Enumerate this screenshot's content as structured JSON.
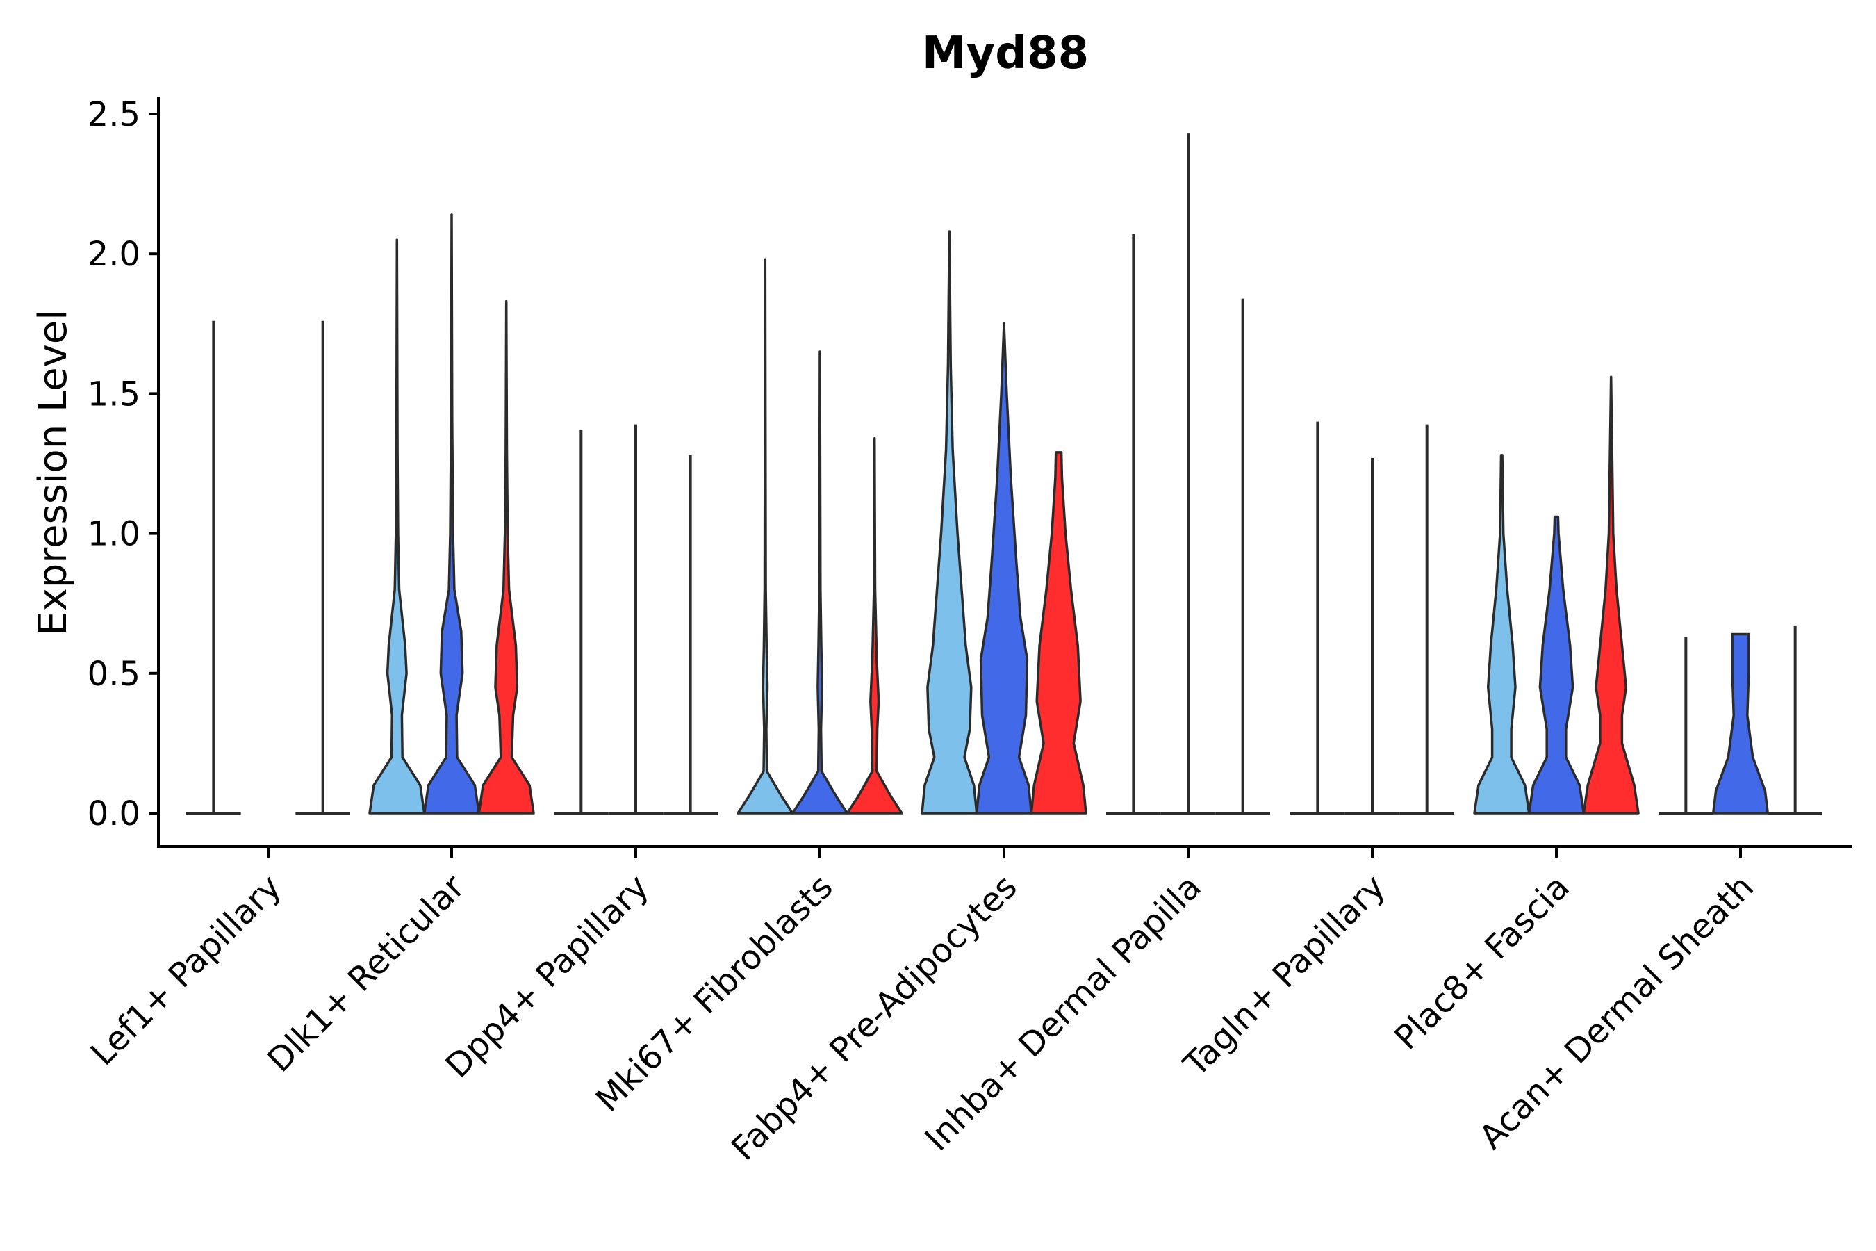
{
  "chart_data": {
    "type": "violin",
    "title": "Myd88",
    "xlabel": "",
    "ylabel": "Expression Level",
    "ylim": [
      -0.12,
      2.55
    ],
    "yticks": [
      0.0,
      0.5,
      1.0,
      1.5,
      2.0,
      2.5
    ],
    "ytick_labels": [
      "0.0",
      "0.5",
      "1.0",
      "1.5",
      "2.0",
      "2.5"
    ],
    "categories": [
      "Lef1+ Papillary",
      "Dlk1+ Reticular",
      "Dpp4+ Papillary",
      "Mki67+ Fibroblasts",
      "Fabp4+ Pre-Adipocytes",
      "Inhba+ Dermal Papilla",
      "Tagln+ Papillary",
      "Plac8+ Fascia",
      "Acan+ Dermal Sheath"
    ],
    "series_colors": [
      "#7DC0EC",
      "#4169E8",
      "#FF2D2D"
    ],
    "groups": [
      {
        "category": "Lef1+ Papillary",
        "violins": [
          {
            "series": 0,
            "max": 1.76,
            "profile": [
              [
                0,
                1
              ]
            ]
          },
          {
            "series": 2,
            "max": 1.76,
            "profile": [
              [
                0,
                1
              ]
            ]
          }
        ]
      },
      {
        "category": "Dlk1+ Reticular",
        "violins": [
          {
            "series": 0,
            "max": 2.05,
            "profile": [
              [
                0,
                1
              ],
              [
                0.1,
                0.85
              ],
              [
                0.2,
                0.2
              ],
              [
                0.35,
                0.18
              ],
              [
                0.5,
                0.35
              ],
              [
                0.6,
                0.3
              ],
              [
                0.8,
                0.08
              ],
              [
                1.0,
                0.04
              ],
              [
                1.3,
                0.02
              ],
              [
                2.05,
                0
              ]
            ]
          },
          {
            "series": 1,
            "max": 2.14,
            "profile": [
              [
                0,
                1
              ],
              [
                0.1,
                0.85
              ],
              [
                0.2,
                0.2
              ],
              [
                0.35,
                0.18
              ],
              [
                0.5,
                0.4
              ],
              [
                0.65,
                0.35
              ],
              [
                0.8,
                0.1
              ],
              [
                1.0,
                0.05
              ],
              [
                1.4,
                0.02
              ],
              [
                2.14,
                0
              ]
            ]
          },
          {
            "series": 2,
            "max": 1.83,
            "profile": [
              [
                0,
                1
              ],
              [
                0.1,
                0.85
              ],
              [
                0.2,
                0.2
              ],
              [
                0.35,
                0.25
              ],
              [
                0.45,
                0.4
              ],
              [
                0.6,
                0.35
              ],
              [
                0.8,
                0.1
              ],
              [
                1.0,
                0.05
              ],
              [
                1.3,
                0.02
              ],
              [
                1.83,
                0
              ]
            ]
          }
        ]
      },
      {
        "category": "Dpp4+ Papillary",
        "violins": [
          {
            "series": 0,
            "max": 1.37,
            "profile": [
              [
                0,
                1
              ]
            ]
          },
          {
            "series": 1,
            "max": 1.39,
            "profile": [
              [
                0,
                1
              ]
            ]
          },
          {
            "series": 2,
            "max": 1.28,
            "profile": [
              [
                0,
                1
              ]
            ]
          }
        ]
      },
      {
        "category": "Mki67+ Fibroblasts",
        "violins": [
          {
            "series": 0,
            "max": 1.98,
            "profile": [
              [
                0,
                1
              ],
              [
                0.06,
                0.6
              ],
              [
                0.15,
                0.06
              ],
              [
                0.3,
                0.04
              ],
              [
                0.45,
                0.08
              ],
              [
                0.6,
                0.05
              ],
              [
                0.8,
                0.02
              ],
              [
                1.98,
                0
              ]
            ]
          },
          {
            "series": 1,
            "max": 1.65,
            "profile": [
              [
                0,
                1
              ],
              [
                0.06,
                0.6
              ],
              [
                0.15,
                0.06
              ],
              [
                0.3,
                0.04
              ],
              [
                0.45,
                0.08
              ],
              [
                0.6,
                0.05
              ],
              [
                0.8,
                0.02
              ],
              [
                1.65,
                0
              ]
            ]
          },
          {
            "series": 2,
            "max": 1.34,
            "profile": [
              [
                0,
                1
              ],
              [
                0.06,
                0.6
              ],
              [
                0.15,
                0.08
              ],
              [
                0.3,
                0.1
              ],
              [
                0.4,
                0.15
              ],
              [
                0.55,
                0.08
              ],
              [
                0.8,
                0.02
              ],
              [
                1.34,
                0
              ]
            ]
          }
        ]
      },
      {
        "category": "Fabp4+ Pre-Adipocytes",
        "violins": [
          {
            "series": 0,
            "max": 2.08,
            "profile": [
              [
                0,
                1
              ],
              [
                0.1,
                0.9
              ],
              [
                0.2,
                0.55
              ],
              [
                0.3,
                0.75
              ],
              [
                0.45,
                0.8
              ],
              [
                0.6,
                0.6
              ],
              [
                0.8,
                0.45
              ],
              [
                1.0,
                0.3
              ],
              [
                1.3,
                0.12
              ],
              [
                1.6,
                0.05
              ],
              [
                2.08,
                0
              ]
            ]
          },
          {
            "series": 1,
            "max": 1.75,
            "profile": [
              [
                0,
                1
              ],
              [
                0.1,
                0.9
              ],
              [
                0.2,
                0.55
              ],
              [
                0.35,
                0.8
              ],
              [
                0.55,
                0.85
              ],
              [
                0.7,
                0.6
              ],
              [
                0.9,
                0.45
              ],
              [
                1.2,
                0.25
              ],
              [
                1.5,
                0.1
              ],
              [
                1.75,
                0
              ]
            ]
          },
          {
            "series": 2,
            "max": 1.29,
            "profile": [
              [
                0,
                1
              ],
              [
                0.1,
                0.9
              ],
              [
                0.25,
                0.55
              ],
              [
                0.4,
                0.8
              ],
              [
                0.6,
                0.7
              ],
              [
                0.8,
                0.45
              ],
              [
                1.0,
                0.25
              ],
              [
                1.2,
                0.12
              ],
              [
                1.29,
                0.1
              ]
            ]
          }
        ]
      },
      {
        "category": "Inhba+ Dermal Papilla",
        "violins": [
          {
            "series": 0,
            "max": 2.07,
            "profile": [
              [
                0,
                1
              ]
            ]
          },
          {
            "series": 1,
            "max": 2.43,
            "profile": [
              [
                0,
                1
              ]
            ]
          },
          {
            "series": 2,
            "max": 1.84,
            "profile": [
              [
                0,
                1
              ]
            ]
          }
        ]
      },
      {
        "category": "Tagln+ Papillary",
        "violins": [
          {
            "series": 0,
            "max": 1.4,
            "profile": [
              [
                0,
                1
              ]
            ]
          },
          {
            "series": 1,
            "max": 1.27,
            "profile": [
              [
                0,
                1
              ]
            ]
          },
          {
            "series": 2,
            "max": 1.39,
            "profile": [
              [
                0,
                1
              ]
            ]
          }
        ]
      },
      {
        "category": "Plac8+ Fascia",
        "violins": [
          {
            "series": 0,
            "max": 1.28,
            "profile": [
              [
                0,
                1
              ],
              [
                0.1,
                0.85
              ],
              [
                0.2,
                0.35
              ],
              [
                0.3,
                0.35
              ],
              [
                0.45,
                0.5
              ],
              [
                0.6,
                0.4
              ],
              [
                0.8,
                0.2
              ],
              [
                1.0,
                0.06
              ],
              [
                1.28,
                0.02
              ]
            ]
          },
          {
            "series": 1,
            "max": 1.06,
            "profile": [
              [
                0,
                1
              ],
              [
                0.1,
                0.85
              ],
              [
                0.2,
                0.35
              ],
              [
                0.3,
                0.35
              ],
              [
                0.45,
                0.6
              ],
              [
                0.6,
                0.5
              ],
              [
                0.8,
                0.25
              ],
              [
                1.0,
                0.08
              ],
              [
                1.06,
                0.06
              ]
            ]
          },
          {
            "series": 2,
            "max": 1.56,
            "profile": [
              [
                0,
                1
              ],
              [
                0.1,
                0.85
              ],
              [
                0.25,
                0.4
              ],
              [
                0.35,
                0.4
              ],
              [
                0.45,
                0.55
              ],
              [
                0.6,
                0.4
              ],
              [
                0.8,
                0.2
              ],
              [
                1.0,
                0.08
              ],
              [
                1.56,
                0
              ]
            ]
          }
        ]
      },
      {
        "category": "Acan+ Dermal Sheath",
        "violins": [
          {
            "series": 0,
            "max": 0.63,
            "profile": [
              [
                0,
                1
              ]
            ]
          },
          {
            "series": 1,
            "max": 0.64,
            "profile": [
              [
                0,
                1
              ],
              [
                0.08,
                0.9
              ],
              [
                0.2,
                0.45
              ],
              [
                0.35,
                0.25
              ],
              [
                0.5,
                0.3
              ],
              [
                0.64,
                0.3
              ]
            ]
          },
          {
            "series": 2,
            "max": 0.67,
            "profile": [
              [
                0,
                1
              ]
            ]
          }
        ]
      }
    ]
  }
}
